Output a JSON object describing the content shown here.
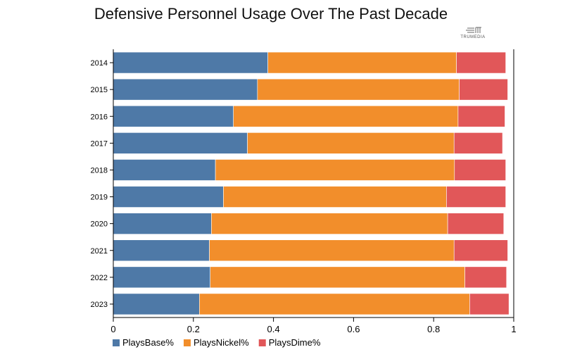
{
  "logo": {
    "text": "TRUMEDIA"
  },
  "chart_data": {
    "type": "bar",
    "orientation": "horizontal",
    "stacked": true,
    "title": "Defensive Personnel Usage Over The Past Decade",
    "xlabel": "",
    "ylabel": "",
    "categories": [
      "2014",
      "2015",
      "2016",
      "2017",
      "2018",
      "2019",
      "2020",
      "2021",
      "2022",
      "2023"
    ],
    "series": [
      {
        "name": "PlaysBase%",
        "color": "#4e79a7",
        "values": [
          0.386,
          0.36,
          0.3,
          0.335,
          0.255,
          0.275,
          0.245,
          0.24,
          0.242,
          0.215
        ]
      },
      {
        "name": "PlaysNickel%",
        "color": "#f28e2b",
        "values": [
          0.471,
          0.504,
          0.561,
          0.516,
          0.597,
          0.557,
          0.59,
          0.611,
          0.636,
          0.675
        ]
      },
      {
        "name": "PlaysDime%",
        "color": "#e15759",
        "values": [
          0.123,
          0.121,
          0.117,
          0.121,
          0.128,
          0.148,
          0.14,
          0.134,
          0.104,
          0.098
        ]
      }
    ],
    "xlim": [
      0,
      1
    ],
    "xticks": [
      "0",
      "0.2",
      "0.4",
      "0.6",
      "0.8",
      "1"
    ],
    "xtick_values": [
      0,
      0.2,
      0.4,
      0.6,
      0.8,
      1
    ],
    "grid": false,
    "legend_position": "bottom-left"
  }
}
